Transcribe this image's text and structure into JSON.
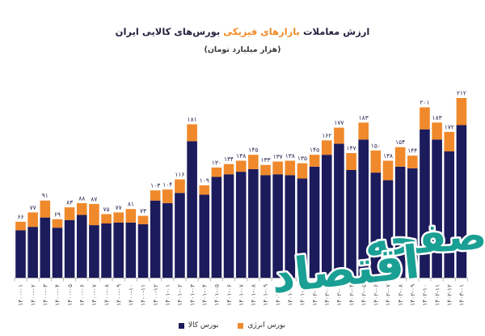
{
  "chart_data": {
    "type": "bar",
    "stacked": true,
    "title": {
      "part1": "ارزش معاملات",
      "highlight": "بازارهای فیزیکی",
      "part2": "بورس‌های کالایی ایران",
      "highlight_color": "#f28c28"
    },
    "subtitle": "(هزار میلیارد تومان)",
    "categories": [
      "۱۴۰۰-۰۱",
      "۱۴۰۰-۰۲",
      "۱۴۰۰-۰۳",
      "۱۴۰۰-۰۴",
      "۱۴۰۰-۰۵",
      "۱۴۰۰-۰۶",
      "۱۴۰۰-۰۷",
      "۱۴۰۰-۰۸",
      "۱۴۰۰-۰۹",
      "۱۴۰۰-۱۰",
      "۱۴۰۰-۱۱",
      "۱۴۰۰-۱۲",
      "۱۴۰۱-۰۱",
      "۱۴۰۱-۰۲",
      "۱۴۰۱-۰۳",
      "۱۴۰۱-۰۴",
      "۱۴۰۱-۰۵",
      "۱۴۰۱-۰۶",
      "۱۴۰۱-۰۷",
      "۱۴۰۱-۰۸",
      "۱۴۰۱-۰۹",
      "۱۴۰۱-۱۰",
      "۱۴۰۱-۱۱",
      "۱۴۰۱-۱۲",
      "۱۴۰۲-۰۱",
      "۱۴۰۲-۰۲",
      "۱۴۰۲-۰۳",
      "۱۴۰۲-۰۴",
      "۱۴۰۲-۰۵",
      "۱۴۰۲-۰۶",
      "۱۴۰۲-۰۷",
      "۱۴۰۲-۰۸",
      "۱۴۰۲-۰۹",
      "۱۴۰۲-۱۰",
      "۱۴۰۲-۱۱",
      "۱۴۰۲-۱۲",
      "۱۴۰۳-۰۱"
    ],
    "series": [
      {
        "name": "بورس کالا",
        "color": "#1c1b5c",
        "values": [
          56,
          60,
          71,
          59,
          68,
          74,
          62,
          64,
          65,
          65,
          63,
          91,
          88,
          100,
          161,
          98,
          119,
          122,
          125,
          128,
          121,
          122,
          121,
          117,
          131,
          145,
          158,
          127,
          163,
          124,
          115,
          131,
          129,
          175,
          163,
          149,
          180
        ]
      },
      {
        "name": "بورس انرژی",
        "color": "#f0892b",
        "values": [
          10,
          17,
          20,
          10,
          15,
          14,
          25,
          11,
          12,
          16,
          10,
          12,
          16,
          16,
          20,
          11,
          11,
          12,
          13,
          17,
          12,
          15,
          17,
          18,
          14,
          17,
          19,
          20,
          20,
          26,
          23,
          23,
          15,
          26,
          20,
          23,
          32
        ]
      }
    ],
    "totals": [
      66,
      77,
      91,
      69,
      83,
      88,
      87,
      75,
      77,
      81,
      73,
      103,
      104,
      116,
      181,
      109,
      130,
      134,
      138,
      145,
      133,
      137,
      138,
      135,
      145,
      162,
      177,
      147,
      183,
      150,
      138,
      154,
      144,
      201,
      183,
      172,
      212
    ],
    "legend": "bottom",
    "grid": false
  },
  "logo": {
    "line1": "صفحه",
    "line2": "اقتصاد",
    "color": "#1a9f94"
  }
}
